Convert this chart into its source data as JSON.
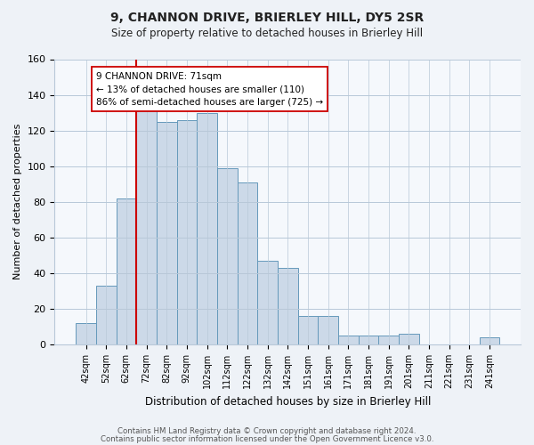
{
  "title": "9, CHANNON DRIVE, BRIERLEY HILL, DY5 2SR",
  "subtitle": "Size of property relative to detached houses in Brierley Hill",
  "xlabel": "Distribution of detached houses by size in Brierley Hill",
  "ylabel": "Number of detached properties",
  "bar_labels": [
    "42sqm",
    "52sqm",
    "62sqm",
    "72sqm",
    "82sqm",
    "92sqm",
    "102sqm",
    "112sqm",
    "122sqm",
    "132sqm",
    "142sqm",
    "151sqm",
    "161sqm",
    "171sqm",
    "181sqm",
    "191sqm",
    "201sqm",
    "211sqm",
    "221sqm",
    "231sqm",
    "241sqm"
  ],
  "bar_values": [
    12,
    33,
    82,
    132,
    125,
    126,
    130,
    99,
    91,
    47,
    43,
    16,
    16,
    5,
    5,
    5,
    6,
    0,
    0,
    0,
    4
  ],
  "bar_color": "#ccd9e8",
  "bar_edge_color": "#6699bb",
  "vline_x_index": 3,
  "vline_color": "#cc0000",
  "annotation_text": "9 CHANNON DRIVE: 71sqm\n← 13% of detached houses are smaller (110)\n86% of semi-detached houses are larger (725) →",
  "annotation_box_color": "#ffffff",
  "annotation_box_edge": "#cc0000",
  "ylim": [
    0,
    160
  ],
  "yticks": [
    0,
    20,
    40,
    60,
    80,
    100,
    120,
    140,
    160
  ],
  "footer_line1": "Contains HM Land Registry data © Crown copyright and database right 2024.",
  "footer_line2": "Contains public sector information licensed under the Open Government Licence v3.0.",
  "bg_color": "#eef2f7",
  "plot_bg_color": "#f5f8fc",
  "grid_color": "#b8c8d8"
}
